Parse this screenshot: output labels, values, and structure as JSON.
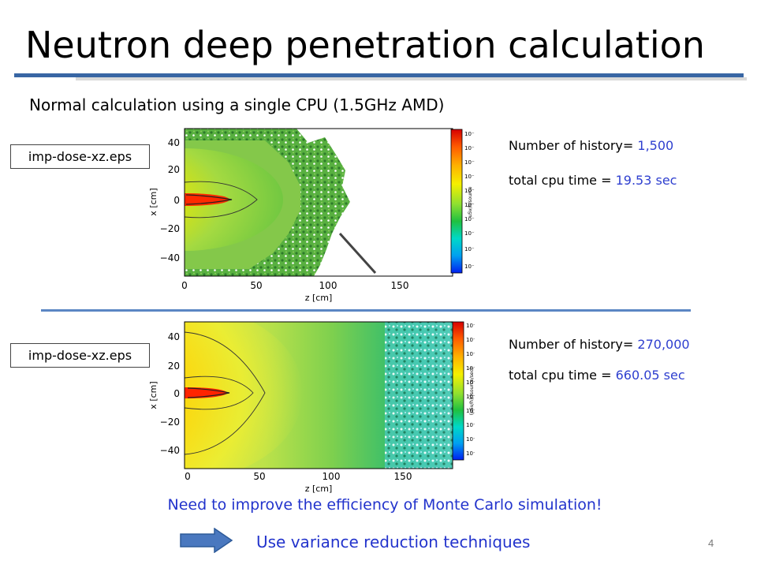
{
  "slide": {
    "title": "Neutron deep penetration calculation",
    "subtitle": "Normal calculation using a single CPU (1.5GHz AMD)",
    "page_number": "4"
  },
  "plots": [
    {
      "file_label": "imp-dose-xz.eps",
      "history_label": "Number of history=",
      "history_value": "1,500",
      "cpu_label": "total cpu time =",
      "cpu_value": "19.53 sec",
      "xlabel": "z [cm]",
      "ylabel": "x [cm]",
      "colorbar_label": "uSv/h/source",
      "x_ticks": [
        "0",
        "50",
        "100",
        "150"
      ],
      "y_ticks": [
        "40",
        "20",
        "0",
        "−20",
        "−40"
      ],
      "colorbar_ticks": [
        "10⁻²",
        "10⁻³",
        "10⁻⁴",
        "10⁻⁵",
        "10⁻⁶",
        "10⁻⁷",
        "10⁻⁸",
        "10⁻⁹",
        "10⁻¹⁰",
        "10⁻¹¹"
      ]
    },
    {
      "file_label": "imp-dose-xz.eps",
      "history_label": "Number of history=",
      "history_value": "270,000",
      "cpu_label": "total cpu time =",
      "cpu_value": "660.05 sec",
      "xlabel": "z [cm]",
      "ylabel": "x [cm]",
      "colorbar_label": "(μSv/h)/(source/sec)",
      "x_ticks": [
        "0",
        "50",
        "100",
        "150"
      ],
      "y_ticks": [
        "40",
        "20",
        "0",
        "−20",
        "−40"
      ],
      "colorbar_ticks": [
        "10⁻²",
        "10⁻³",
        "10⁻⁴",
        "10⁻⁵",
        "10⁻⁶",
        "10⁻⁷",
        "10⁻⁸",
        "10⁻⁹",
        "10⁻¹⁰",
        "10⁻¹¹"
      ]
    }
  ],
  "conclusion": "Need to improve the efficiency of Monte Carlo simulation!",
  "action": "Use variance reduction techniques",
  "colors": {
    "title_rule": "#3866a4",
    "accent_text": "#2233cc",
    "value_text": "#2e3fcf",
    "arrow_fill": "#4a78bf"
  }
}
